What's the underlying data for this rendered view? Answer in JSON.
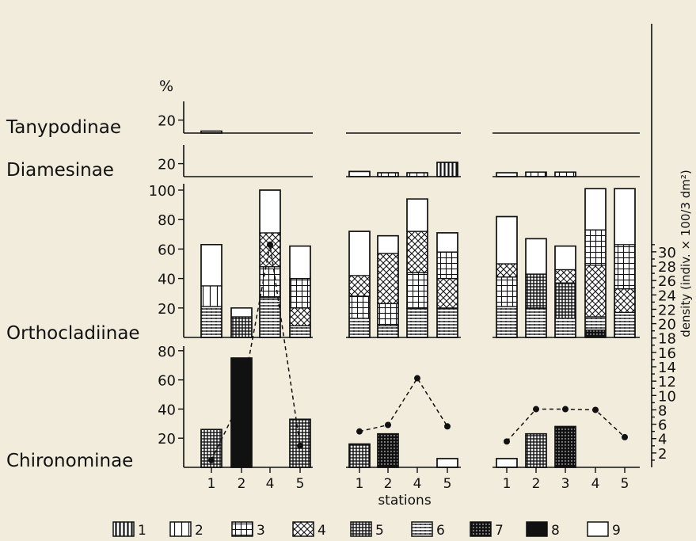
{
  "chart_data": {
    "type": "bar",
    "title": "",
    "x_axis_label": "stations",
    "y_axis_left_unit": "%",
    "y_axis_right_label": "density (indiv. × 100/3 dm²)",
    "y_axis_right_ticks": [
      2,
      4,
      6,
      8,
      10,
      12,
      14,
      16,
      18,
      20,
      22,
      24,
      26,
      28,
      30
    ],
    "panels": [
      "Tanypodinae",
      "Diamesinae",
      "Orthocladiinae",
      "Chironominae"
    ],
    "panel_ticks": {
      "Tanypodinae": [
        20
      ],
      "Diamesinae": [
        20
      ],
      "Orthocladiinae": [
        20,
        40,
        60,
        80,
        100
      ],
      "Chironominae": [
        20,
        40,
        60,
        80
      ]
    },
    "legend": [
      "1",
      "2",
      "3",
      "4",
      "5",
      "6",
      "7",
      "8",
      "9"
    ],
    "groups": [
      {
        "stations": [
          "1",
          "2",
          "4",
          "5"
        ],
        "density": [
          1.0,
          9.6,
          31.0,
          3.0
        ],
        "tanypodinae": [
          [
            {
              "c": 9,
              "v": 3
            }
          ],
          [],
          [],
          []
        ],
        "diamesinae": [
          [],
          [],
          [],
          []
        ],
        "orthocladiinae": [
          [
            {
              "c": 6,
              "v": 21
            },
            {
              "c": 2,
              "v": 14
            },
            {
              "c": 9,
              "v": 28
            }
          ],
          [
            {
              "c": 5,
              "v": 14
            },
            {
              "c": 9,
              "v": 6
            }
          ],
          [
            {
              "c": 6,
              "v": 27
            },
            {
              "c": 3,
              "v": 21
            },
            {
              "c": 4,
              "v": 23
            },
            {
              "c": 9,
              "v": 29
            }
          ],
          [
            {
              "c": 6,
              "v": 8
            },
            {
              "c": 4,
              "v": 12
            },
            {
              "c": 3,
              "v": 20
            },
            {
              "c": 9,
              "v": 22
            }
          ]
        ],
        "chironominae": [
          [
            {
              "c": 5,
              "v": 26
            }
          ],
          [
            {
              "c": 8,
              "v": 75
            }
          ],
          [],
          [
            {
              "c": 5,
              "v": 33
            }
          ]
        ]
      },
      {
        "stations": [
          "1",
          "2",
          "4",
          "5"
        ],
        "density": [
          5.0,
          5.9,
          12.4,
          5.7
        ],
        "tanypodinae": [
          [],
          [],
          [],
          []
        ],
        "diamesinae": [
          [
            {
              "c": 9,
              "v": 8
            }
          ],
          [
            {
              "c": 2,
              "v": 6
            }
          ],
          [
            {
              "c": 2,
              "v": 6
            }
          ],
          [
            {
              "c": 1,
              "v": 22
            }
          ]
        ],
        "orthocladiinae": [
          [
            {
              "c": 6,
              "v": 13
            },
            {
              "c": 3,
              "v": 15
            },
            {
              "c": 4,
              "v": 14
            },
            {
              "c": 9,
              "v": 30
            }
          ],
          [
            {
              "c": 6,
              "v": 8
            },
            {
              "c": 3,
              "v": 15
            },
            {
              "c": 4,
              "v": 34
            },
            {
              "c": 9,
              "v": 12
            }
          ],
          [
            {
              "c": 6,
              "v": 20
            },
            {
              "c": 3,
              "v": 24
            },
            {
              "c": 4,
              "v": 28
            },
            {
              "c": 9,
              "v": 22
            }
          ],
          [
            {
              "c": 6,
              "v": 20
            },
            {
              "c": 4,
              "v": 20
            },
            {
              "c": 3,
              "v": 18
            },
            {
              "c": 9,
              "v": 13
            }
          ]
        ],
        "chironominae": [
          [
            {
              "c": 5,
              "v": 16
            }
          ],
          [
            {
              "c": 7,
              "v": 23
            }
          ],
          [],
          [
            {
              "c": 9,
              "v": 6
            }
          ]
        ]
      },
      {
        "stations": [
          "1",
          "2",
          "3",
          "4",
          "5"
        ],
        "density": [
          3.6,
          8.1,
          8.1,
          8.0,
          4.2
        ],
        "tanypodinae": [
          [],
          [],
          [],
          [],
          []
        ],
        "diamesinae": [
          [
            {
              "c": 9,
              "v": 6
            }
          ],
          [
            {
              "c": 2,
              "v": 7
            }
          ],
          [
            {
              "c": 2,
              "v": 7
            }
          ],
          [],
          []
        ],
        "orthocladiinae": [
          [
            {
              "c": 6,
              "v": 21
            },
            {
              "c": 3,
              "v": 20
            },
            {
              "c": 4,
              "v": 9
            },
            {
              "c": 9,
              "v": 32
            }
          ],
          [
            {
              "c": 6,
              "v": 20
            },
            {
              "c": 5,
              "v": 23
            },
            {
              "c": 9,
              "v": 24
            }
          ],
          [
            {
              "c": 6,
              "v": 13
            },
            {
              "c": 5,
              "v": 24
            },
            {
              "c": 4,
              "v": 9
            },
            {
              "c": 9,
              "v": 16
            }
          ],
          [
            {
              "c": 7,
              "v": 5
            },
            {
              "c": 6,
              "v": 9
            },
            {
              "c": 4,
              "v": 35
            },
            {
              "c": 3,
              "v": 24
            },
            {
              "c": 9,
              "v": 28
            }
          ],
          [
            {
              "c": 6,
              "v": 17
            },
            {
              "c": 4,
              "v": 16
            },
            {
              "c": 3,
              "v": 30
            },
            {
              "c": 9,
              "v": 38
            }
          ]
        ],
        "chironominae": [
          [
            {
              "c": 9,
              "v": 6
            }
          ],
          [
            {
              "c": 5,
              "v": 23
            }
          ],
          [
            {
              "c": 7,
              "v": 28
            }
          ],
          [],
          []
        ]
      }
    ]
  }
}
